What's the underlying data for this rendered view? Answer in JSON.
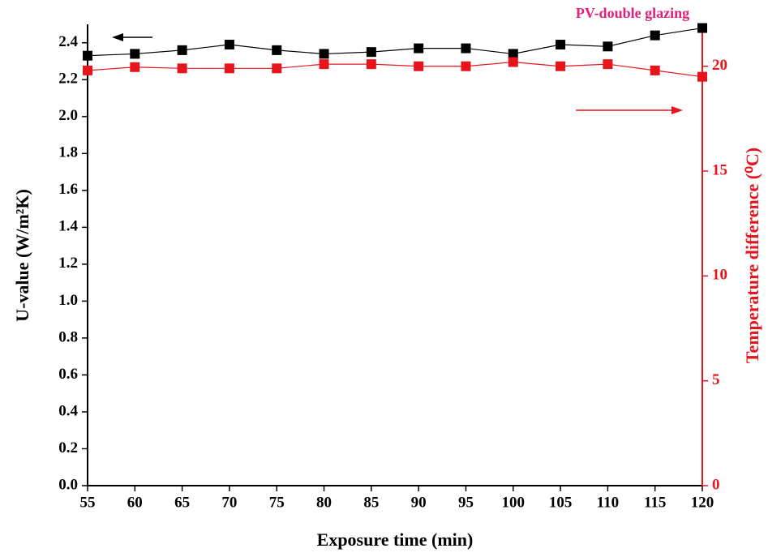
{
  "chart_data": {
    "type": "line",
    "annotation": "PV-double glazing",
    "x_label": "Exposure time (min)",
    "y_label": "U-value (W/m²K)",
    "y2_label": "Temperature difference (⁰C)",
    "x": [
      55,
      60,
      65,
      70,
      75,
      80,
      85,
      90,
      95,
      100,
      105,
      110,
      115,
      120
    ],
    "series": [
      {
        "name": "U-value",
        "color": "#000000",
        "values": [
          2.33,
          2.34,
          2.36,
          2.39,
          2.36,
          2.34,
          2.35,
          2.37,
          2.37,
          2.34,
          2.39,
          2.38,
          2.44,
          2.48
        ]
      },
      {
        "name": "Temperature difference",
        "color": "#e8141b",
        "axis": "y2",
        "values": [
          19.8,
          19.96,
          19.9,
          19.9,
          19.9,
          20.1,
          20.1,
          20.0,
          20.0,
          20.2,
          20.0,
          20.1,
          19.8,
          19.5
        ]
      }
    ],
    "xlim": [
      55,
      120
    ],
    "xticks": [
      55,
      60,
      65,
      70,
      75,
      80,
      85,
      90,
      95,
      100,
      105,
      110,
      115,
      120
    ],
    "ylim": [
      0,
      2.5
    ],
    "yticks": [
      {
        "value": 0,
        "label": "0.0"
      },
      0.2,
      0.4,
      0.6,
      0.8,
      {
        "value": 1,
        "label": "1.0"
      },
      1.2,
      1.4,
      1.6,
      1.8,
      {
        "value": 2,
        "label": "2.0"
      },
      2.2,
      2.4
    ],
    "y2lim": [
      0,
      22
    ],
    "y2ticks": [
      0,
      5,
      10,
      15,
      20
    ],
    "annotation_color": "#e0207a"
  }
}
